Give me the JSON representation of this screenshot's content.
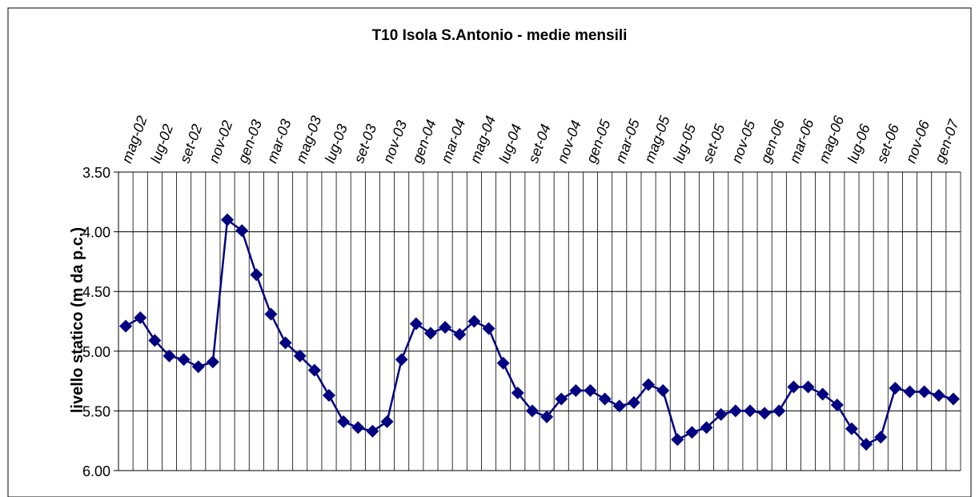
{
  "chart_data": {
    "type": "line",
    "title": "T10 Isola S.Antonio - medie mensili",
    "y_label": "livello statico (m da p.c.)",
    "categories": [
      "mag-02",
      null,
      "lug-02",
      null,
      "set-02",
      null,
      "nov-02",
      null,
      "gen-03",
      null,
      "mar-03",
      null,
      "mag-03",
      null,
      "lug-03",
      null,
      "set-03",
      null,
      "nov-03",
      null,
      "gen-04",
      null,
      "mar-04",
      null,
      "mag-04",
      null,
      "lug-04",
      null,
      "set-04",
      null,
      "nov-04",
      null,
      "gen-05",
      null,
      "mar-05",
      null,
      "mag-05",
      null,
      "lug-05",
      null,
      "set-05",
      null,
      "nov-05",
      null,
      "gen-06",
      null,
      "mar-06",
      null,
      "mag-06",
      null,
      "lug-06",
      null,
      "set-06",
      null,
      "nov-06",
      null,
      "gen-07",
      null
    ],
    "series": [
      {
        "name": "T10",
        "color": "#000080",
        "values": [
          4.79,
          4.72,
          4.91,
          5.04,
          5.07,
          5.13,
          5.09,
          3.9,
          3.99,
          4.36,
          4.69,
          4.93,
          5.04,
          5.16,
          5.37,
          5.59,
          5.64,
          5.67,
          5.59,
          5.07,
          4.77,
          4.85,
          4.8,
          4.86,
          4.75,
          4.81,
          5.1,
          5.35,
          5.5,
          5.55,
          5.4,
          5.33,
          5.33,
          5.4,
          5.46,
          5.43,
          5.28,
          5.33,
          5.74,
          5.68,
          5.64,
          5.53,
          5.5,
          5.5,
          5.52,
          5.5,
          5.3,
          5.3,
          5.36,
          5.45,
          5.65,
          5.78,
          5.72,
          5.31,
          5.34,
          5.34,
          5.37,
          5.4
        ]
      }
    ],
    "ylim": [
      3.5,
      6.0
    ],
    "y_inverted": true,
    "yticks": [
      {
        "value": 3.5,
        "label": "3.50"
      },
      {
        "value": 4.0,
        "label": "4.00"
      },
      {
        "value": 4.5,
        "label": "4.50"
      },
      {
        "value": 5.0,
        "label": "5.00"
      },
      {
        "value": 5.5,
        "label": "5.50"
      },
      {
        "value": 6.0,
        "label": "6.00"
      }
    ],
    "grid": true
  }
}
